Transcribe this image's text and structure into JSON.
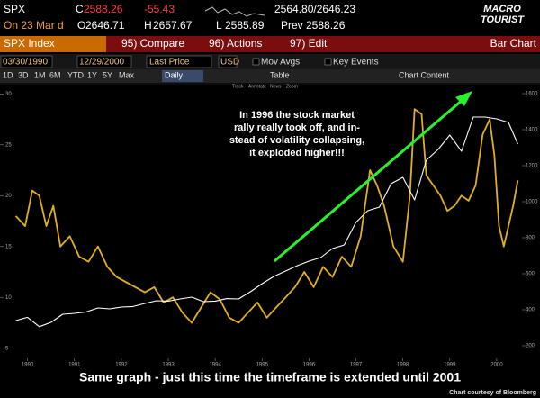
{
  "header": {
    "symbol": "SPX",
    "close_label": "C",
    "close": "2588.26",
    "change": "-55.43",
    "range": "2564.80/2646.23",
    "date": "On 23 Mar d",
    "open_label": "O",
    "open": "2646.71",
    "high_label": "H",
    "high": "2657.67",
    "low_label": "L",
    "low": "2585.89",
    "prev_label": "Prev",
    "prev": "2588.26"
  },
  "logo": [
    "MACRO",
    "TOURIST"
  ],
  "menu": {
    "security": "SPX Index",
    "items": [
      "95) Compare",
      "96) Actions",
      "97) Edit"
    ],
    "view": "Bar Chart"
  },
  "toolbar": {
    "start": "03/30/1990",
    "end": "12/29/2000",
    "field": "Last Price",
    "currency": "USD",
    "studies": [
      "Mov Avgs",
      "Key Events"
    ],
    "periods": [
      "1D",
      "3D",
      "1M",
      "6M",
      "YTD",
      "1Y",
      "5Y",
      "Max"
    ],
    "frequency": "Daily",
    "table": "Table",
    "chart_content": "Chart Content",
    "tools": [
      "Track",
      "Annotate",
      "News",
      "Zoom"
    ]
  },
  "chart_data": {
    "type": "line",
    "annotation": [
      "In 1996 the stock market",
      "rally really took off, and in-",
      "stead of volatility collapsing,",
      "it exploded higher!!!"
    ],
    "xlim": [
      1990.2,
      2001.0
    ],
    "xticks": [
      {
        "value": 1990.5,
        "label": "1990"
      },
      {
        "value": 1991.5,
        "label": "1991"
      },
      {
        "value": 1992.5,
        "label": "1992"
      },
      {
        "value": 1993.5,
        "label": "1993"
      },
      {
        "value": 1994.5,
        "label": "1994"
      },
      {
        "value": 1995.5,
        "label": "1995"
      },
      {
        "value": 1996.5,
        "label": "1996"
      },
      {
        "value": 1997.5,
        "label": "1997"
      },
      {
        "value": 1998.5,
        "label": "1998"
      },
      {
        "value": 1999.5,
        "label": "1999"
      },
      {
        "value": 2000.5,
        "label": "2000"
      }
    ],
    "ylim": [
      4,
      31
    ],
    "yticks": [
      5,
      10,
      15,
      20,
      25,
      30
    ],
    "y2lim": [
      130,
      1655
    ],
    "y2ticks": [
      200,
      400,
      600,
      800,
      1000,
      1200,
      1400,
      1600
    ],
    "grid": false,
    "series": [
      {
        "color": "#e0b020",
        "x": [
          1990.25,
          1990.45,
          1990.6,
          1990.75,
          1990.9,
          1991.05,
          1991.2,
          1991.4,
          1991.6,
          1991.8,
          1992.0,
          1992.2,
          1992.4,
          1992.6,
          1992.8,
          1993.0,
          1993.2,
          1993.4,
          1993.6,
          1993.8,
          1994.0,
          1994.2,
          1994.4,
          1994.6,
          1994.8,
          1995.0,
          1995.2,
          1995.4,
          1995.6,
          1995.8,
          1996.0,
          1996.2,
          1996.4,
          1996.6,
          1996.8,
          1997.0,
          1997.2,
          1997.4,
          1997.6,
          1997.8,
          1997.95,
          1998.1,
          1998.3,
          1998.5,
          1998.65,
          1998.75,
          1998.9,
          1999.0,
          1999.15,
          1999.3,
          1999.45,
          1999.6,
          1999.75,
          1999.9,
          2000.05,
          2000.2,
          2000.35,
          2000.45,
          2000.55,
          2000.65,
          2000.75,
          2000.85,
          2000.95
        ],
        "values": [
          18,
          17,
          20.5,
          20,
          17,
          19,
          15,
          16,
          14,
          13.5,
          15,
          13,
          12,
          11.5,
          11,
          10.5,
          11,
          9.5,
          10,
          8.5,
          7.5,
          9,
          10.5,
          9.8,
          8,
          7.5,
          8.5,
          9.5,
          8,
          9,
          10,
          11,
          12.5,
          11,
          13,
          12,
          14,
          13,
          16,
          22.5,
          21,
          19,
          15,
          13.5,
          20,
          28.5,
          28,
          22,
          21,
          20,
          18.5,
          19,
          20,
          19.5,
          21,
          26,
          27.5,
          24,
          17,
          15,
          17,
          19,
          21.5
        ]
      },
      {
        "color": "#ffffff",
        "axis": "y2",
        "x": [
          1990.25,
          1990.5,
          1990.75,
          1991.0,
          1991.25,
          1991.5,
          1991.75,
          1992.0,
          1992.25,
          1992.5,
          1992.75,
          1993.0,
          1993.25,
          1993.5,
          1993.75,
          1994.0,
          1994.25,
          1994.5,
          1994.75,
          1995.0,
          1995.25,
          1995.5,
          1995.75,
          1996.0,
          1996.25,
          1996.5,
          1996.75,
          1997.0,
          1997.25,
          1997.5,
          1997.75,
          1998.0,
          1998.25,
          1998.5,
          1998.75,
          1999.0,
          1999.25,
          1999.5,
          1999.75,
          2000.0,
          2000.25,
          2000.5,
          2000.75,
          2000.95
        ],
        "values": [
          340,
          358,
          306,
          330,
          375,
          380,
          388,
          410,
          405,
          415,
          418,
          435,
          450,
          448,
          460,
          470,
          445,
          448,
          462,
          460,
          500,
          545,
          585,
          615,
          645,
          670,
          690,
          740,
          760,
          885,
          950,
          970,
          1100,
          1135,
          1010,
          1230,
          1290,
          1370,
          1280,
          1470,
          1470,
          1460,
          1440,
          1320
        ]
      }
    ]
  },
  "caption": "Same graph - just this time the timeframe is extended until 2001",
  "credit": "Chart courtesy of Bloomberg"
}
